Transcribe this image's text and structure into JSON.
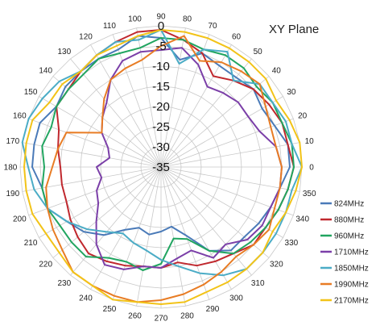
{
  "chart_data": {
    "type": "radar",
    "title": "XY  Plane",
    "angles": [
      0,
      10,
      20,
      30,
      40,
      50,
      60,
      70,
      80,
      90,
      100,
      110,
      120,
      130,
      140,
      150,
      160,
      170,
      180,
      190,
      200,
      210,
      220,
      230,
      240,
      250,
      260,
      270,
      280,
      290,
      300,
      310,
      320,
      330,
      340,
      350
    ],
    "radial_ticks": [
      0,
      -5,
      -10,
      -15,
      -20,
      -25,
      -30,
      -35
    ],
    "rlim": [
      -35,
      0
    ],
    "grid": true,
    "legend_position": "right",
    "series": [
      {
        "name": "824MHz",
        "color": "#4a7ab8",
        "values": [
          -3,
          -3,
          -5,
          -6,
          -5,
          -6,
          -6,
          -5,
          -8,
          -3,
          -2,
          -4,
          -4,
          -4,
          -4,
          -5,
          -3,
          -3,
          -3,
          -5,
          -5,
          -8,
          -10,
          -13,
          -17,
          -19,
          -18,
          -19,
          -20,
          -17,
          -11,
          -8,
          -8,
          -7,
          -6,
          -5
        ]
      },
      {
        "name": "880MHz",
        "color": "#c0282e",
        "values": [
          -2,
          -3,
          -3,
          -4,
          -5,
          -7,
          -9,
          -5,
          -3,
          -1,
          -1,
          -2,
          -3,
          -4,
          -5,
          -5,
          -8,
          -9,
          -10,
          -10,
          -10,
          -9,
          -8,
          -7,
          -8,
          -9,
          -10,
          -10,
          -11,
          -9,
          -8,
          -7,
          -5,
          -5,
          -4,
          -3
        ]
      },
      {
        "name": "960MHz",
        "color": "#21a560",
        "values": [
          -2,
          -2,
          -3,
          -3,
          -4,
          -3,
          -3,
          -4,
          -3,
          -3,
          -5,
          -5,
          -4,
          -5,
          -5,
          -5,
          -6,
          -5,
          -6,
          -5,
          -5,
          -6,
          -6,
          -6,
          -9,
          -10,
          -9,
          -11,
          -17,
          -16,
          -11,
          -7,
          -6,
          -5,
          -4,
          -3
        ]
      },
      {
        "name": "1710MHz",
        "color": "#7b3fa8",
        "values": [
          -5,
          -6,
          -9,
          -10,
          -10,
          -11,
          -12,
          -8,
          -5,
          -6,
          -6,
          -7,
          -10,
          -14,
          -16,
          -18,
          -21,
          -22,
          -19,
          -20,
          -18,
          -17,
          -14,
          -10,
          -7,
          -8,
          -10,
          -10,
          -12,
          -13,
          -9,
          -10,
          -7,
          -6,
          -6,
          -5
        ]
      },
      {
        "name": "1850MHz",
        "color": "#4bacc6",
        "values": [
          0,
          -2,
          -2,
          -3,
          -3,
          -7,
          -2,
          -4,
          -9,
          -1,
          -3,
          -2,
          -3,
          -4,
          -2,
          -1,
          0,
          0,
          -2,
          -3,
          -5,
          -8,
          -11,
          -14,
          -16,
          -15,
          -14,
          -12,
          -10,
          -7,
          -4,
          -2,
          -2,
          -2,
          -2,
          -2
        ]
      },
      {
        "name": "1990MHz",
        "color": "#e87c24",
        "values": [
          -5,
          -6,
          -6,
          -5,
          -3,
          -4,
          -5,
          -7,
          -2,
          -5,
          -8,
          -9,
          -10,
          -13,
          -16,
          -18,
          -10,
          -9,
          -8,
          -6,
          -5,
          -4,
          -3,
          -1,
          -1,
          -1,
          -1,
          -2,
          -3,
          -4,
          -5,
          -6,
          -5,
          -4,
          -5,
          -5
        ]
      },
      {
        "name": "2170MHz",
        "color": "#f2c318",
        "values": [
          0,
          0,
          -1,
          -2,
          -1,
          -1,
          -1,
          -1,
          -1,
          -1,
          -2,
          -3,
          -3,
          -4,
          -3,
          -3,
          -1,
          -1,
          -1,
          -1,
          -1,
          -2,
          -2,
          -1,
          -1,
          0,
          -1,
          -1,
          -1,
          -2,
          -2,
          -2,
          -2,
          -3,
          -2,
          -1
        ]
      }
    ]
  }
}
